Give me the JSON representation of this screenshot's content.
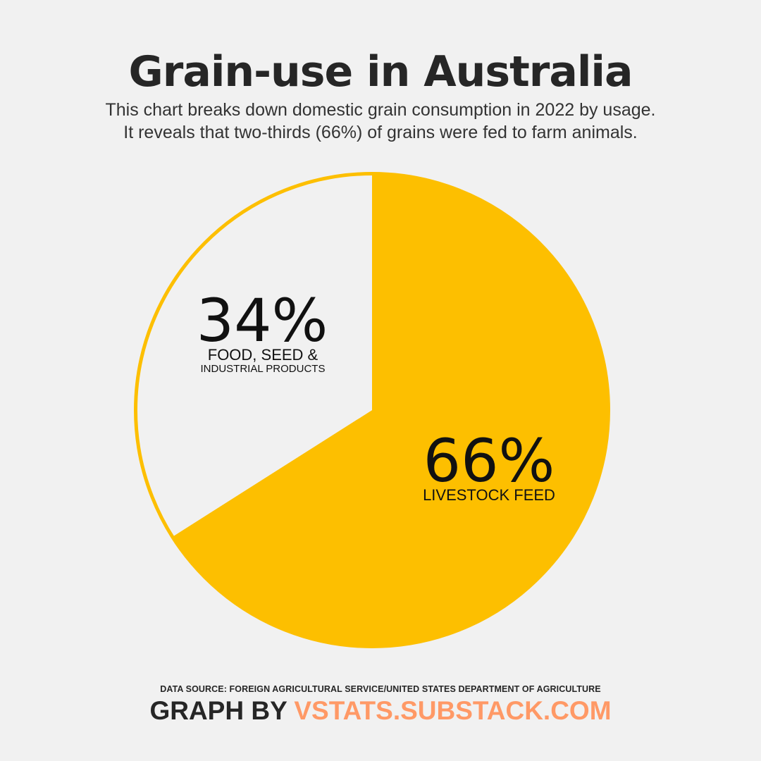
{
  "header": {
    "title": "Grain-use in Australia",
    "subtitle_line1": "This chart breaks down domestic grain consumption in 2022 by usage.",
    "subtitle_line2": "It reveals that two-thirds (66%) of grains were fed to farm animals."
  },
  "chart_data": {
    "type": "pie",
    "slices": [
      {
        "value": 66,
        "value_label": "66%",
        "label_lines": [
          "LIVESTOCK FEED"
        ],
        "color": "#fdbf00"
      },
      {
        "value": 34,
        "value_label": "34%",
        "label_lines": [
          "FOOD, SEED &",
          "INDUSTRIAL PRODUCTS"
        ],
        "color": "#f1f1f1"
      }
    ],
    "start_angle_deg": 0,
    "direction": "clockwise",
    "outline_color": "#fdbf00"
  },
  "footer": {
    "source": "DATA SOURCE: FOREIGN AGRICULTURAL SERVICE/UNITED STATES DEPARTMENT OF AGRICULTURE",
    "credit_prefix": "GRAPH BY ",
    "credit_link": "VSTATS.SUBSTACK.COM"
  },
  "colors": {
    "background": "#f1f1f1",
    "accent": "#fdbf00",
    "link": "#ff9966",
    "text": "#262626"
  }
}
